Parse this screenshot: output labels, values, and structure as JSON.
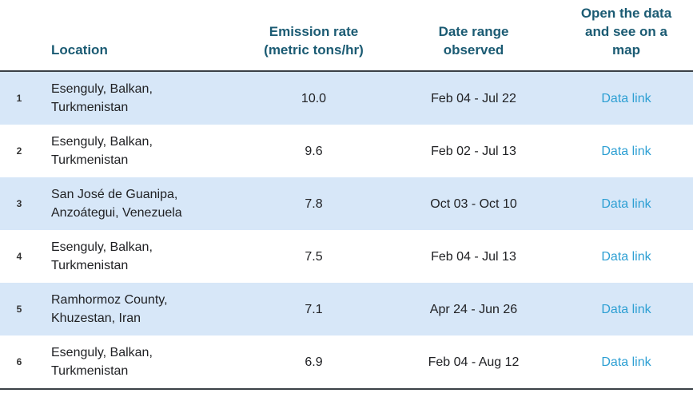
{
  "colors": {
    "header_text": "#1b5b73",
    "alt_row_background": "#d7e7f8",
    "link": "#2d9fd3",
    "divider": "#3b4147",
    "body_text": "#202124"
  },
  "table": {
    "headers": {
      "location": "Location",
      "emission_rate": "Emission rate\n(metric tons/hr)",
      "date_range": "Date range\nobserved",
      "open_data": "Open the data\nand see on a\nmap"
    },
    "rows": [
      {
        "num": "1",
        "location": "Esenguly, Balkan,\nTurkmenistan",
        "emission_rate": "10.0",
        "date_range": "Feb 04 - Jul 22",
        "link_label": "Data link"
      },
      {
        "num": "2",
        "location": "Esenguly, Balkan,\nTurkmenistan",
        "emission_rate": "9.6",
        "date_range": "Feb 02 - Jul 13",
        "link_label": "Data link"
      },
      {
        "num": "3",
        "location": "San José de Guanipa,\nAnzoátegui, Venezuela",
        "emission_rate": "7.8",
        "date_range": "Oct 03 - Oct 10",
        "link_label": "Data link"
      },
      {
        "num": "4",
        "location": "Esenguly, Balkan,\nTurkmenistan",
        "emission_rate": "7.5",
        "date_range": "Feb 04 - Jul 13",
        "link_label": "Data link"
      },
      {
        "num": "5",
        "location": "Ramhormoz County,\nKhuzestan, Iran",
        "emission_rate": "7.1",
        "date_range": "Apr 24 - Jun 26",
        "link_label": "Data link"
      },
      {
        "num": "6",
        "location": "Esenguly, Balkan,\nTurkmenistan",
        "emission_rate": "6.9",
        "date_range": "Feb 04 - Aug 12",
        "link_label": "Data link"
      }
    ]
  }
}
